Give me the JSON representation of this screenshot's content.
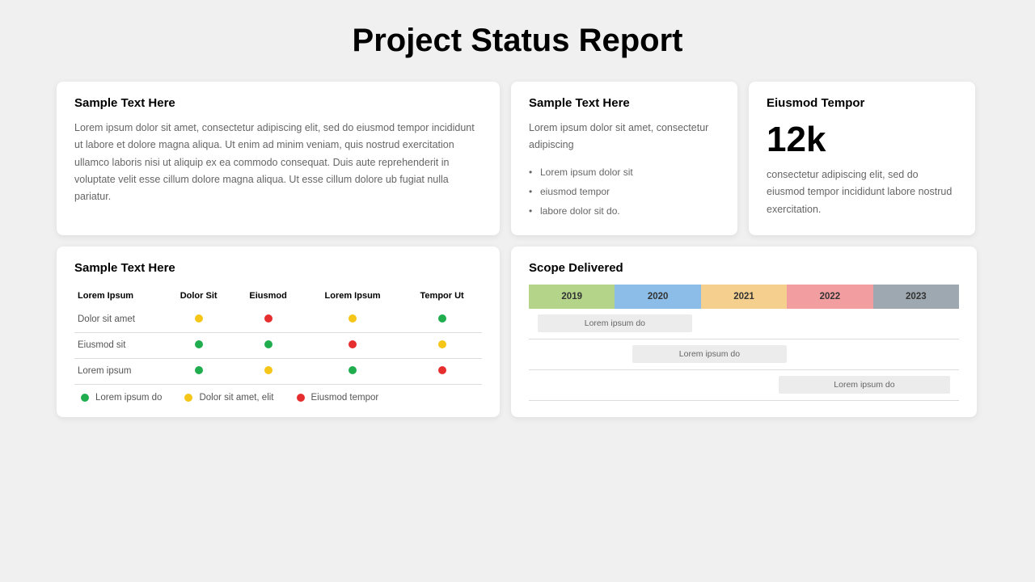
{
  "title": "Project Status Report",
  "status_colors": {
    "green": "#1fad4e",
    "yellow": "#f5c518",
    "red": "#e62e2e"
  },
  "card1": {
    "title": "Sample Text Here",
    "body": "Lorem ipsum dolor sit amet, consectetur adipiscing elit, sed do eiusmod tempor incididunt ut labore et dolore magna aliqua. Ut enim ad minim veniam, quis nostrud exercitation ullamco laboris nisi ut aliquip ex ea commodo consequat. Duis aute reprehenderit in voluptate velit esse cillum dolore magna aliqua. Ut esse cillum dolore ub fugiat nulla pariatur."
  },
  "card2": {
    "title": "Sample Text Here",
    "body": "Lorem ipsum dolor sit amet, consectetur adipiscing",
    "bullets": [
      "Lorem ipsum dolor sit",
      "eiusmod tempor",
      "labore dolor sit do."
    ]
  },
  "card3": {
    "title": "Eiusmod  Tempor",
    "value": "12k",
    "body": "consectetur adipiscing elit, sed do eiusmod tempor incididunt labore nostrud exercitation."
  },
  "card4": {
    "title": "Sample Text Here",
    "columns": [
      "Lorem Ipsum",
      "Dolor Sit",
      "Eiusmod",
      "Lorem Ipsum",
      "Tempor Ut"
    ],
    "rows": [
      {
        "label": "Dolor sit amet",
        "cells": [
          "yellow",
          "red",
          "yellow",
          "green"
        ]
      },
      {
        "label": "Eiusmod sit",
        "cells": [
          "green",
          "green",
          "red",
          "yellow"
        ]
      },
      {
        "label": "Lorem ipsum",
        "cells": [
          "green",
          "yellow",
          "green",
          "red"
        ]
      }
    ],
    "legend": [
      {
        "color": "green",
        "label": "Lorem ipsum do"
      },
      {
        "color": "yellow",
        "label": "Dolor sit amet, elit"
      },
      {
        "color": "red",
        "label": "Eiusmod tempor"
      }
    ]
  },
  "card5": {
    "title": "Scope Delivered",
    "years": [
      {
        "label": "2019",
        "color": "#b4d48a"
      },
      {
        "label": "2020",
        "color": "#8cbde8"
      },
      {
        "label": "2021",
        "color": "#f5cf8e"
      },
      {
        "label": "2022",
        "color": "#f29da0"
      },
      {
        "label": "2023",
        "color": "#9ea8b0"
      }
    ],
    "bars": [
      {
        "label": "Lorem ipsum do",
        "start_pct": 2,
        "width_pct": 36
      },
      {
        "label": "Lorem ipsum do",
        "start_pct": 24,
        "width_pct": 36
      },
      {
        "label": "Lorem ipsum do",
        "start_pct": 58,
        "width_pct": 40
      }
    ]
  }
}
